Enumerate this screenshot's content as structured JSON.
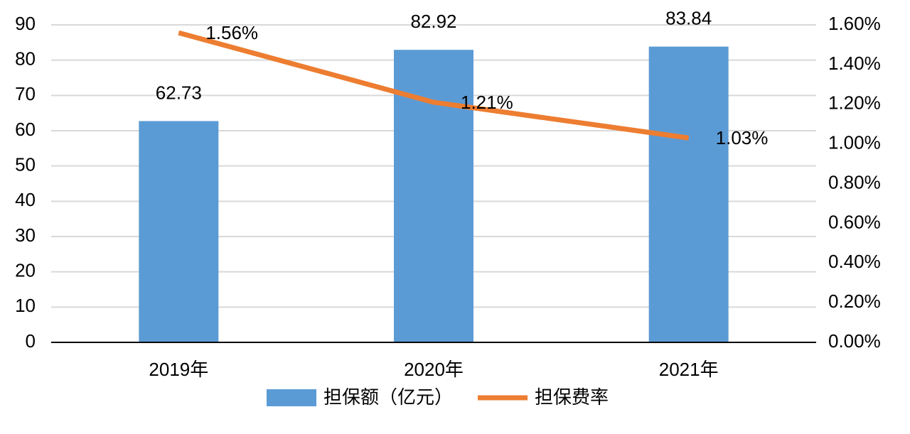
{
  "chart_data": {
    "type": "bar-line",
    "categories": [
      "2019年",
      "2020年",
      "2021年"
    ],
    "series": [
      {
        "name": "担保额（亿元）",
        "type": "bar",
        "color": "#5b9bd5",
        "values": [
          62.73,
          82.92,
          83.84
        ]
      },
      {
        "name": "担保费率",
        "type": "line",
        "axis": "y2",
        "color": "#ed7d31",
        "values": [
          1.56,
          1.21,
          1.03
        ],
        "value_labels": [
          "1.56%",
          "1.21%",
          "1.03%"
        ]
      }
    ],
    "ylim": [
      0,
      90
    ],
    "yticks": [
      0,
      10,
      20,
      30,
      40,
      50,
      60,
      70,
      80,
      90
    ],
    "y2lim": [
      0,
      1.6
    ],
    "y2ticks": [
      {
        "value": 0,
        "label": "0.00%"
      },
      {
        "value": 0.2,
        "label": "0.20%"
      },
      {
        "value": 0.4,
        "label": "0.40%"
      },
      {
        "value": 0.6,
        "label": "0.60%"
      },
      {
        "value": 0.8,
        "label": "0.80%"
      },
      {
        "value": 1.0,
        "label": "1.00%"
      },
      {
        "value": 1.2,
        "label": "1.20%"
      },
      {
        "value": 1.4,
        "label": "1.40%"
      },
      {
        "value": 1.6,
        "label": "1.60%"
      }
    ],
    "grid": true,
    "legend": "bottom"
  }
}
